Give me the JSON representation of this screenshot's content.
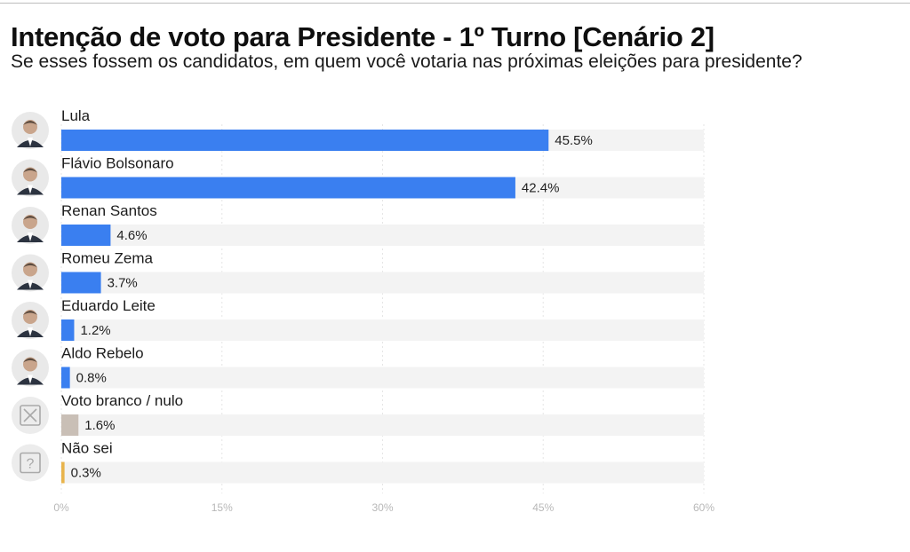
{
  "title": "Intenção de voto para Presidente - 1º Turno [Cenário 2]",
  "subtitle": "Se esses fossem os candidatos, em quem você votaria nas próximas eleições para presidente?",
  "chart_data": {
    "type": "bar",
    "orientation": "horizontal",
    "categories": [
      "Lula",
      "Flávio Bolsonaro",
      "Renan Santos",
      "Romeu Zema",
      "Eduardo Leite",
      "Aldo Rebelo",
      "Voto branco / nulo",
      "Não sei"
    ],
    "values": [
      45.5,
      42.4,
      4.6,
      3.7,
      1.2,
      0.8,
      1.6,
      0.3
    ],
    "value_labels": [
      "45.5%",
      "42.4%",
      "4.6%",
      "3.7%",
      "1.2%",
      "0.8%",
      "1.6%",
      "0.3%"
    ],
    "icons": [
      "avatar",
      "avatar",
      "avatar",
      "avatar",
      "avatar",
      "avatar",
      "blank-vote-icon",
      "question-icon"
    ],
    "colors": [
      "#3a7ff0",
      "#3a7ff0",
      "#3a7ff0",
      "#3a7ff0",
      "#3a7ff0",
      "#3a7ff0",
      "#c9bfb6",
      "#e8b44c"
    ],
    "track_color": "#f3f3f3",
    "xlim": [
      0,
      60
    ],
    "xticks": [
      0,
      15,
      30,
      45,
      60
    ],
    "xtick_labels": [
      "0%",
      "15%",
      "30%",
      "45%",
      "60%"
    ],
    "grid": true
  }
}
